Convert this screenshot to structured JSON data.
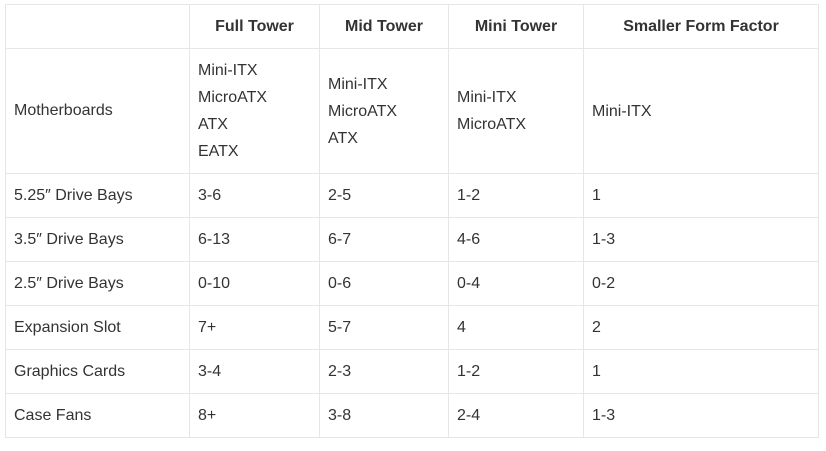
{
  "table": {
    "headers": [
      "",
      "Full Tower",
      "Mid Tower",
      "Mini Tower",
      "Smaller Form Factor"
    ],
    "motherboards": {
      "label": "Motherboards",
      "full_tower": [
        "Mini-ITX",
        "MicroATX",
        "ATX",
        "EATX"
      ],
      "mid_tower": [
        "Mini-ITX",
        "MicroATX",
        "ATX"
      ],
      "mini_tower": [
        "Mini-ITX",
        "MicroATX"
      ],
      "small_form": [
        "Mini-ITX"
      ]
    },
    "rows": [
      {
        "label": "5.25″ Drive Bays",
        "values": [
          "3-6",
          "2-5",
          "1-2",
          "1"
        ]
      },
      {
        "label": "3.5″ Drive Bays",
        "values": [
          "6-13",
          "6-7",
          "4-6",
          "1-3"
        ]
      },
      {
        "label": "2.5″ Drive Bays",
        "values": [
          "0-10",
          "0-6",
          "0-4",
          "0-2"
        ]
      },
      {
        "label": "Expansion Slot",
        "values": [
          "7+",
          "5-7",
          "4",
          "2"
        ]
      },
      {
        "label": "Graphics Cards",
        "values": [
          "3-4",
          "2-3",
          "1-2",
          "1"
        ]
      },
      {
        "label": "Case Fans",
        "values": [
          "8+",
          "3-8",
          "2-4",
          "1-3"
        ]
      }
    ]
  }
}
